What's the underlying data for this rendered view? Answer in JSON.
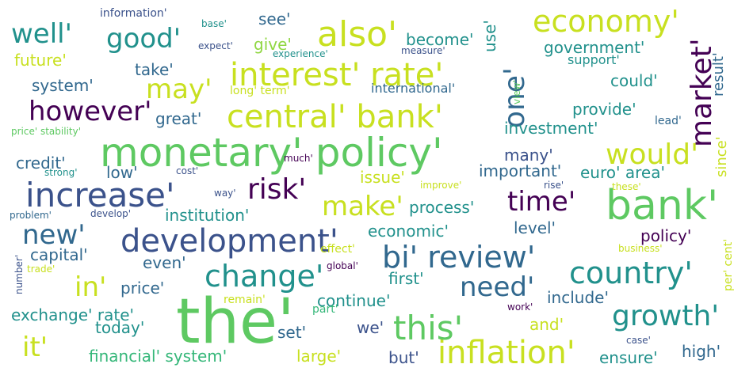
{
  "palette": {
    "dark_purple": "#440154",
    "indigo": "#3b528b",
    "teal_blue": "#31688e",
    "teal": "#21918c",
    "green_teal": "#35b779",
    "green": "#5ec962",
    "lime": "#90d743",
    "yellow": "#fde725",
    "yellow_green": "#c8e020"
  },
  "words": [
    {
      "text": "the'",
      "color": "#5ec962",
      "weight": 60
    },
    {
      "text": "monetary' policy'",
      "color": "#5ec962",
      "weight": 50
    },
    {
      "text": "bank'",
      "color": "#5ec962",
      "weight": 48
    },
    {
      "text": "increase'",
      "color": "#3b528b",
      "weight": 42
    },
    {
      "text": "development'",
      "color": "#3b528b",
      "weight": 42
    },
    {
      "text": "central' bank'",
      "color": "#c8e020",
      "weight": 40
    },
    {
      "text": "interest' rate'",
      "color": "#c8e020",
      "weight": 40
    },
    {
      "text": "inflation'",
      "color": "#c8e020",
      "weight": 40
    },
    {
      "text": "this'",
      "color": "#5ec962",
      "weight": 40
    },
    {
      "text": "also'",
      "color": "#c8e020",
      "weight": 40
    },
    {
      "text": "change'",
      "color": "#21918c",
      "weight": 38
    },
    {
      "text": "bi' review'",
      "color": "#31688e",
      "weight": 38
    },
    {
      "text": "country'",
      "color": "#21918c",
      "weight": 38
    },
    {
      "text": "economy'",
      "color": "#c8e020",
      "weight": 36
    },
    {
      "text": "market'",
      "color": "#440154",
      "weight": 36
    },
    {
      "text": "one'",
      "color": "#31688e",
      "weight": 36
    },
    {
      "text": "would'",
      "color": "#c8e020",
      "weight": 36
    },
    {
      "text": "risk'",
      "color": "#440154",
      "weight": 36
    },
    {
      "text": "growth'",
      "color": "#21918c",
      "weight": 36
    },
    {
      "text": "however'",
      "color": "#440154",
      "weight": 34
    },
    {
      "text": "good'",
      "color": "#21918c",
      "weight": 34
    },
    {
      "text": "well'",
      "color": "#21918c",
      "weight": 34
    },
    {
      "text": "may'",
      "color": "#c8e020",
      "weight": 34
    },
    {
      "text": "make'",
      "color": "#c8e020",
      "weight": 34
    },
    {
      "text": "time'",
      "color": "#440154",
      "weight": 34
    },
    {
      "text": "new'",
      "color": "#31688e",
      "weight": 34
    },
    {
      "text": "need'",
      "color": "#31688e",
      "weight": 34
    },
    {
      "text": "in'",
      "color": "#c8e020",
      "weight": 34
    },
    {
      "text": "it'",
      "color": "#c8e020",
      "weight": 34
    },
    {
      "text": "institution'",
      "color": "#21918c",
      "weight": 20
    },
    {
      "text": "future'",
      "color": "#c8e020",
      "weight": 20
    },
    {
      "text": "system'",
      "color": "#31688e",
      "weight": 20
    },
    {
      "text": "take'",
      "color": "#31688e",
      "weight": 20
    },
    {
      "text": "give'",
      "color": "#90d743",
      "weight": 20
    },
    {
      "text": "become'",
      "color": "#21918c",
      "weight": 20
    },
    {
      "text": "see'",
      "color": "#31688e",
      "weight": 20
    },
    {
      "text": "use'",
      "color": "#21918c",
      "weight": 20
    },
    {
      "text": "government'",
      "color": "#21918c",
      "weight": 20
    },
    {
      "text": "support'",
      "color": "#21918c",
      "weight": 16
    },
    {
      "text": "result'",
      "color": "#31688e",
      "weight": 18
    },
    {
      "text": "could'",
      "color": "#21918c",
      "weight": 20
    },
    {
      "text": "provide'",
      "color": "#21918c",
      "weight": 20
    },
    {
      "text": "investment'",
      "color": "#21918c",
      "weight": 20
    },
    {
      "text": "lead'",
      "color": "#31688e",
      "weight": 14
    },
    {
      "text": "since'",
      "color": "#c8e020",
      "weight": 18
    },
    {
      "text": "great'",
      "color": "#31688e",
      "weight": 20
    },
    {
      "text": "credit'",
      "color": "#31688e",
      "weight": 20
    },
    {
      "text": "low'",
      "color": "#31688e",
      "weight": 20
    },
    {
      "text": "issue'",
      "color": "#c8e020",
      "weight": 20
    },
    {
      "text": "many'",
      "color": "#3b528b",
      "weight": 20
    },
    {
      "text": "important'",
      "color": "#31688e",
      "weight": 20
    },
    {
      "text": "euro' area'",
      "color": "#21918c",
      "weight": 20
    },
    {
      "text": "process'",
      "color": "#21918c",
      "weight": 20
    },
    {
      "text": "economic'",
      "color": "#21918c",
      "weight": 20
    },
    {
      "text": "level'",
      "color": "#31688e",
      "weight": 20
    },
    {
      "text": "policy'",
      "color": "#440154",
      "weight": 20
    },
    {
      "text": "capital'",
      "color": "#31688e",
      "weight": 20
    },
    {
      "text": "even'",
      "color": "#31688e",
      "weight": 20
    },
    {
      "text": "price'",
      "color": "#31688e",
      "weight": 20
    },
    {
      "text": "first'",
      "color": "#21918c",
      "weight": 20
    },
    {
      "text": "continue'",
      "color": "#21918c",
      "weight": 20
    },
    {
      "text": "include'",
      "color": "#31688e",
      "weight": 20
    },
    {
      "text": "exchange' rate'",
      "color": "#21918c",
      "weight": 20
    },
    {
      "text": "today'",
      "color": "#21918c",
      "weight": 20
    },
    {
      "text": "set'",
      "color": "#31688e",
      "weight": 20
    },
    {
      "text": "we'",
      "color": "#3b528b",
      "weight": 20
    },
    {
      "text": "and'",
      "color": "#c8e020",
      "weight": 20
    },
    {
      "text": "financial' system'",
      "color": "#35b779",
      "weight": 20
    },
    {
      "text": "large'",
      "color": "#c8e020",
      "weight": 20
    },
    {
      "text": "but'",
      "color": "#3b528b",
      "weight": 20
    },
    {
      "text": "ensure'",
      "color": "#21918c",
      "weight": 20
    },
    {
      "text": "high'",
      "color": "#31688e",
      "weight": 20
    },
    {
      "text": "information'",
      "color": "#3b528b",
      "weight": 14
    },
    {
      "text": "base'",
      "color": "#21918c",
      "weight": 12
    },
    {
      "text": "expect'",
      "color": "#3b528b",
      "weight": 12
    },
    {
      "text": "experience'",
      "color": "#21918c",
      "weight": 12
    },
    {
      "text": "measure'",
      "color": "#3b528b",
      "weight": 12
    },
    {
      "text": "long' term'",
      "color": "#c8e020",
      "weight": 14
    },
    {
      "text": "international'",
      "color": "#31688e",
      "weight": 16
    },
    {
      "text": "view'",
      "color": "#5ec962",
      "weight": 12
    },
    {
      "text": "price' stability'",
      "color": "#5ec962",
      "weight": 12
    },
    {
      "text": "strong'",
      "color": "#21918c",
      "weight": 12
    },
    {
      "text": "cost'",
      "color": "#3b528b",
      "weight": 12
    },
    {
      "text": "much'",
      "color": "#440154",
      "weight": 12
    },
    {
      "text": "improve'",
      "color": "#c8e020",
      "weight": 12
    },
    {
      "text": "rise'",
      "color": "#3b528b",
      "weight": 12
    },
    {
      "text": "these'",
      "color": "#c8e020",
      "weight": 12
    },
    {
      "text": "way'",
      "color": "#3b528b",
      "weight": 12
    },
    {
      "text": "problem'",
      "color": "#31688e",
      "weight": 12
    },
    {
      "text": "develop'",
      "color": "#3b528b",
      "weight": 12
    },
    {
      "text": "effect'",
      "color": "#c8e020",
      "weight": 14
    },
    {
      "text": "global'",
      "color": "#440154",
      "weight": 12
    },
    {
      "text": "business'",
      "color": "#c8e020",
      "weight": 12
    },
    {
      "text": "per' cent'",
      "color": "#c8e020",
      "weight": 14
    },
    {
      "text": "number'",
      "color": "#3b528b",
      "weight": 12
    },
    {
      "text": "trade'",
      "color": "#c8e020",
      "weight": 12
    },
    {
      "text": "remain'",
      "color": "#c8e020",
      "weight": 14
    },
    {
      "text": "part'",
      "color": "#35b779",
      "weight": 14
    },
    {
      "text": "work'",
      "color": "#440154",
      "weight": 12
    },
    {
      "text": "case'",
      "color": "#3b528b",
      "weight": 12
    }
  ]
}
